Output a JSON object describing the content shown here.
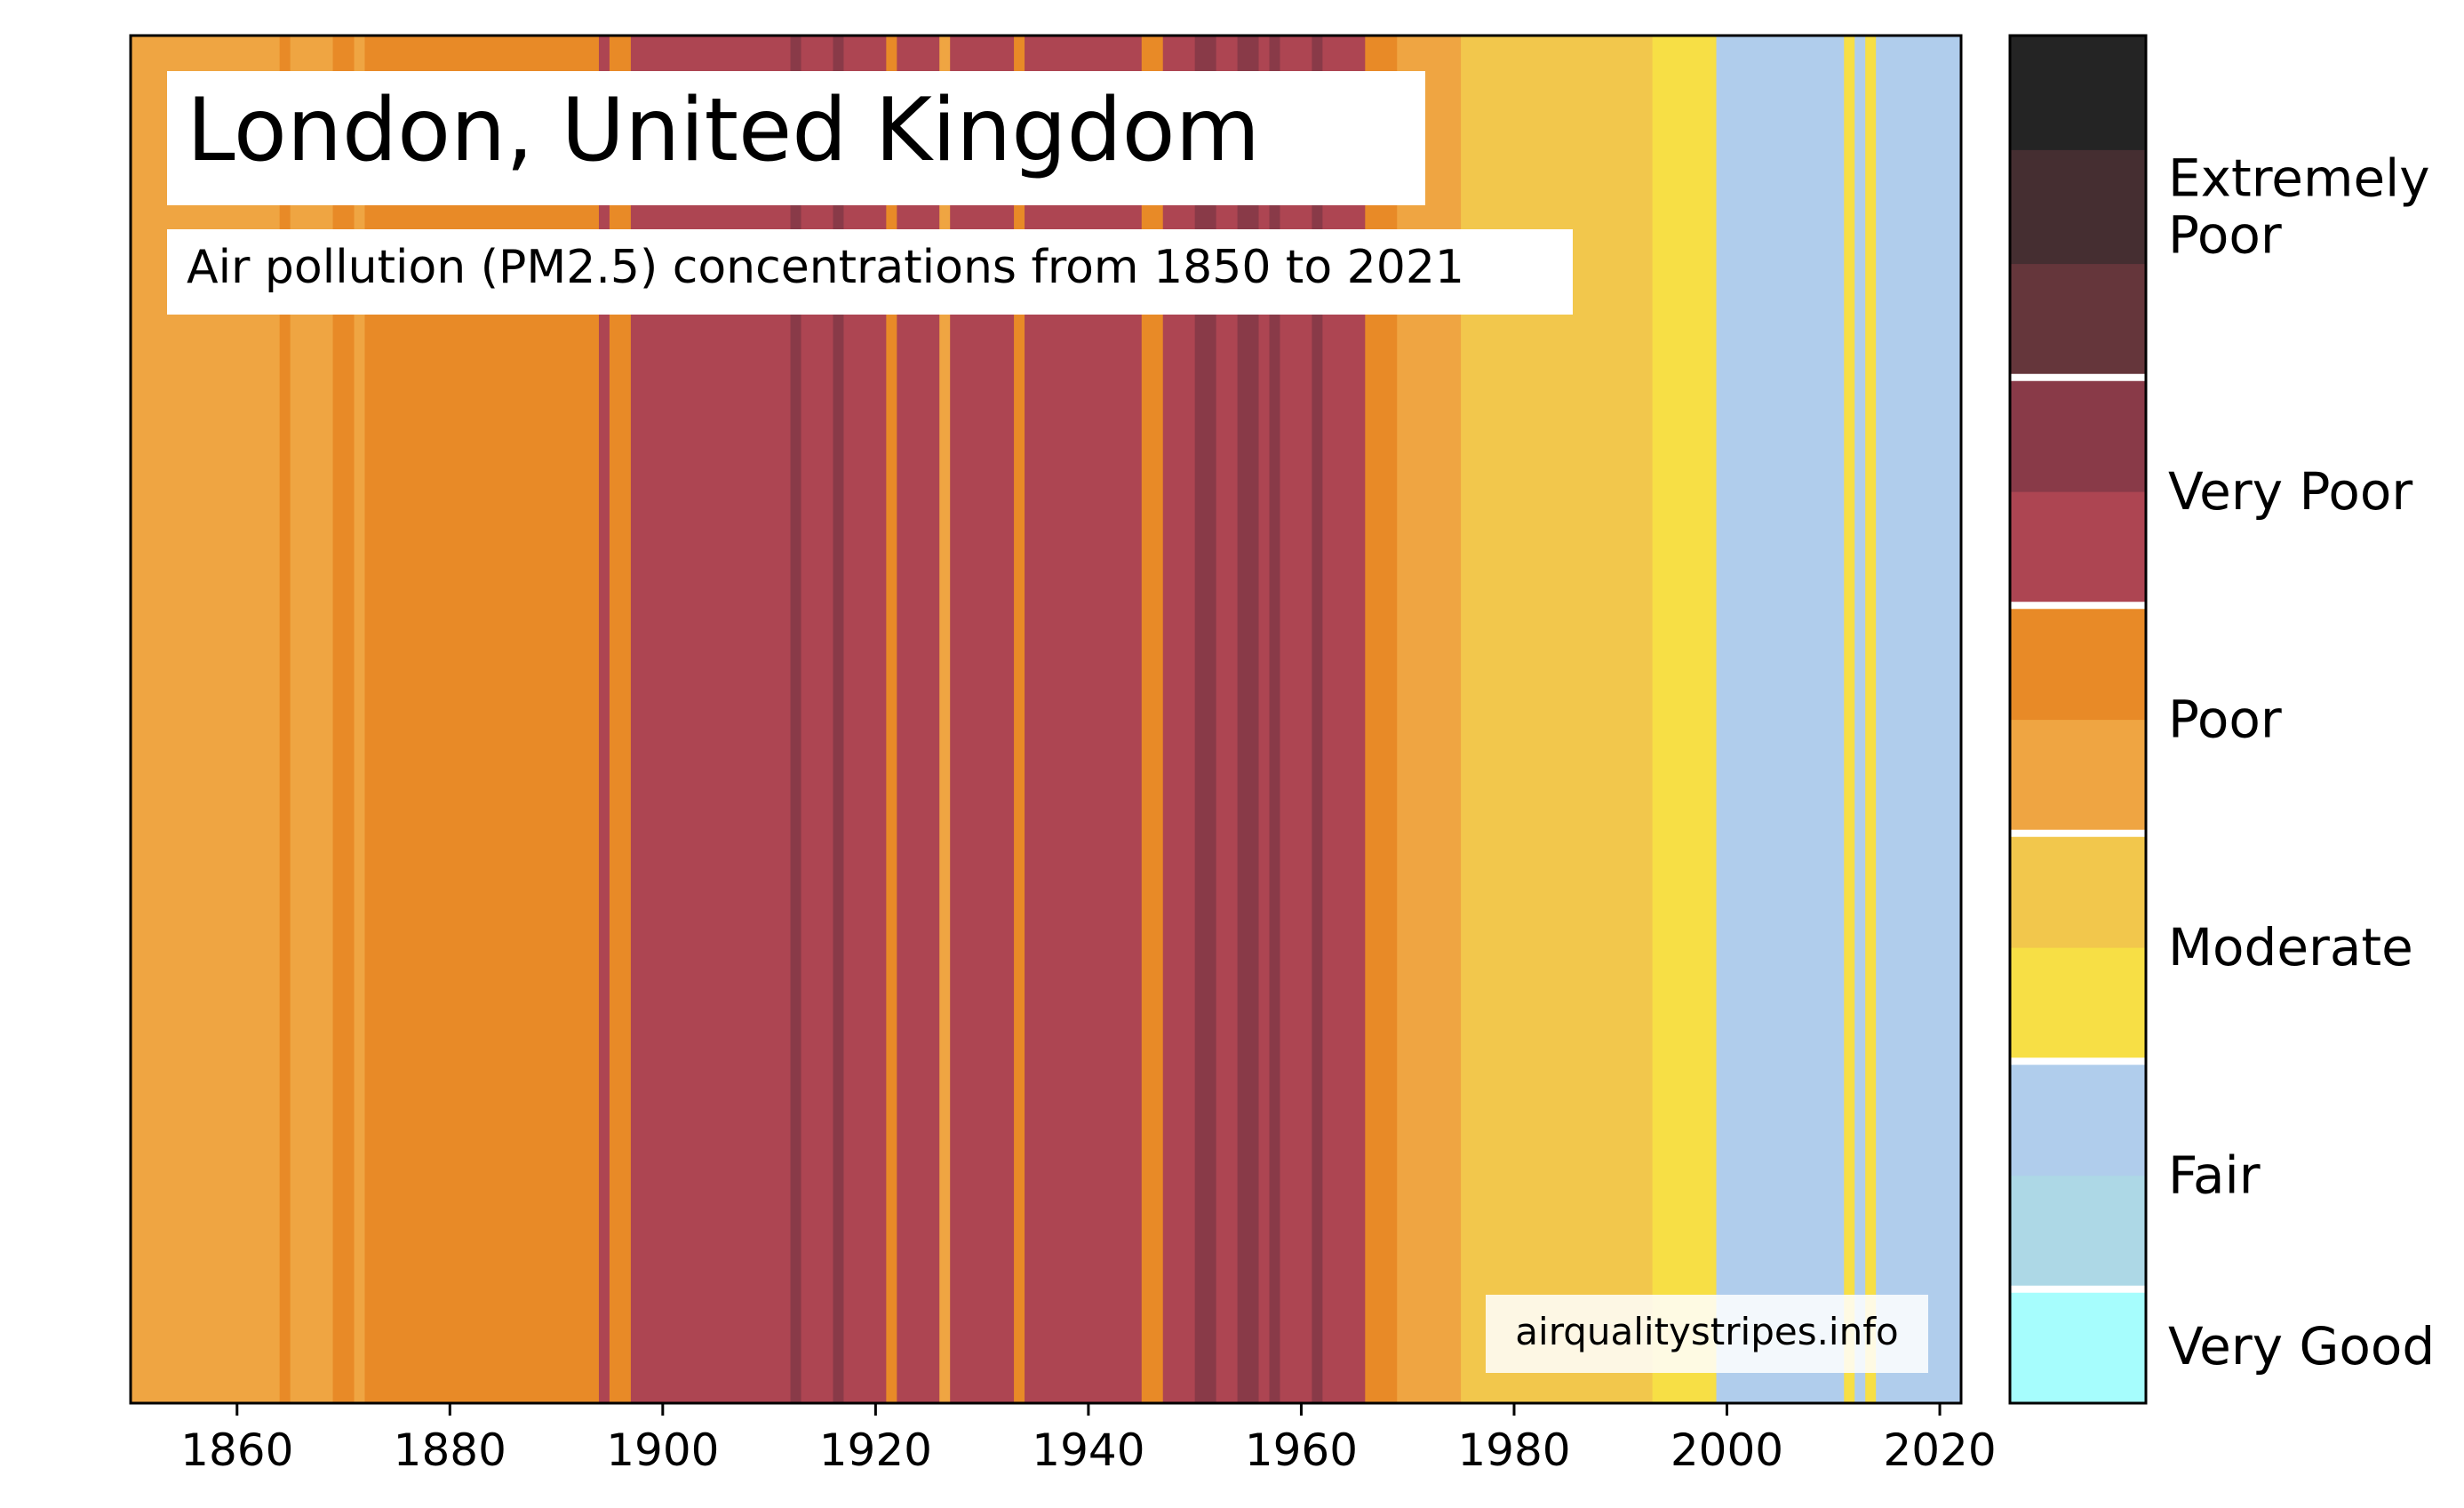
{
  "chart_data": {
    "type": "heatmap",
    "title": "London, United Kingdom",
    "subtitle": "Air pollution (PM2.5) concentrations from 1850 to 2021",
    "watermark": "airqualitystripes.info",
    "x_range": [
      1850,
      2022
    ],
    "x_ticks": [
      1860,
      1880,
      1900,
      1920,
      1940,
      1960,
      1980,
      2000,
      2020
    ],
    "y_axis": "none",
    "grid": false,
    "color_levels": [
      {
        "id": "L0",
        "color": "#a6fdfd",
        "category": "Very Good"
      },
      {
        "id": "L1",
        "color": "#add8e6",
        "category": "Fair"
      },
      {
        "id": "L2",
        "color": "#b0cdec",
        "category": "Fair"
      },
      {
        "id": "L3",
        "color": "#f7df45",
        "category": "Moderate"
      },
      {
        "id": "L4",
        "color": "#f2c74c",
        "category": "Moderate"
      },
      {
        "id": "L5",
        "color": "#efa542",
        "category": "Poor"
      },
      {
        "id": "L6",
        "color": "#e88a27",
        "category": "Poor"
      },
      {
        "id": "L7",
        "color": "#ad4552",
        "category": "Very Poor"
      },
      {
        "id": "L8",
        "color": "#893a48",
        "category": "Very Poor"
      },
      {
        "id": "L9",
        "color": "#65363b",
        "category": "Extremely Poor"
      },
      {
        "id": "L10",
        "color": "#452e31",
        "category": "Extremely Poor"
      },
      {
        "id": "L11",
        "color": "#242424",
        "category": "Extremely Poor"
      }
    ],
    "legend": {
      "placement": "right",
      "categories": [
        {
          "label": "Very Good",
          "levels": [
            "L0"
          ]
        },
        {
          "label": "Fair",
          "levels": [
            "L1",
            "L2"
          ]
        },
        {
          "label": "Moderate",
          "levels": [
            "L3",
            "L4"
          ]
        },
        {
          "label": "Poor",
          "levels": [
            "L5",
            "L6"
          ]
        },
        {
          "label": "Very Poor",
          "levels": [
            "L7",
            "L8"
          ]
        },
        {
          "label": "Extremely Poor",
          "levels": [
            "L9",
            "L10",
            "L11"
          ]
        }
      ]
    },
    "stripes": [
      {
        "start": 1850,
        "end": 1863,
        "level": "L5"
      },
      {
        "start": 1864,
        "end": 1864,
        "level": "L6"
      },
      {
        "start": 1865,
        "end": 1868,
        "level": "L5"
      },
      {
        "start": 1869,
        "end": 1870,
        "level": "L6"
      },
      {
        "start": 1871,
        "end": 1871,
        "level": "L5"
      },
      {
        "start": 1872,
        "end": 1893,
        "level": "L6"
      },
      {
        "start": 1894,
        "end": 1894,
        "level": "L7"
      },
      {
        "start": 1895,
        "end": 1896,
        "level": "L6"
      },
      {
        "start": 1897,
        "end": 1911,
        "level": "L7"
      },
      {
        "start": 1912,
        "end": 1912,
        "level": "L8"
      },
      {
        "start": 1913,
        "end": 1915,
        "level": "L7"
      },
      {
        "start": 1916,
        "end": 1916,
        "level": "L8"
      },
      {
        "start": 1917,
        "end": 1920,
        "level": "L7"
      },
      {
        "start": 1921,
        "end": 1921,
        "level": "L6"
      },
      {
        "start": 1922,
        "end": 1925,
        "level": "L7"
      },
      {
        "start": 1926,
        "end": 1926,
        "level": "L5"
      },
      {
        "start": 1927,
        "end": 1932,
        "level": "L7"
      },
      {
        "start": 1933,
        "end": 1933,
        "level": "L6"
      },
      {
        "start": 1934,
        "end": 1944,
        "level": "L7"
      },
      {
        "start": 1945,
        "end": 1946,
        "level": "L6"
      },
      {
        "start": 1947,
        "end": 1949,
        "level": "L7"
      },
      {
        "start": 1950,
        "end": 1951,
        "level": "L8"
      },
      {
        "start": 1952,
        "end": 1953,
        "level": "L7"
      },
      {
        "start": 1954,
        "end": 1955,
        "level": "L8"
      },
      {
        "start": 1956,
        "end": 1956,
        "level": "L7"
      },
      {
        "start": 1957,
        "end": 1957,
        "level": "L8"
      },
      {
        "start": 1958,
        "end": 1960,
        "level": "L7"
      },
      {
        "start": 1961,
        "end": 1961,
        "level": "L8"
      },
      {
        "start": 1962,
        "end": 1965,
        "level": "L7"
      },
      {
        "start": 1966,
        "end": 1968,
        "level": "L6"
      },
      {
        "start": 1969,
        "end": 1974,
        "level": "L5"
      },
      {
        "start": 1975,
        "end": 1992,
        "level": "L4"
      },
      {
        "start": 1993,
        "end": 1998,
        "level": "L3"
      },
      {
        "start": 1999,
        "end": 2010,
        "level": "L2"
      },
      {
        "start": 2011,
        "end": 2011,
        "level": "L3"
      },
      {
        "start": 2012,
        "end": 2012,
        "level": "L2"
      },
      {
        "start": 2013,
        "end": 2013,
        "level": "L3"
      },
      {
        "start": 2014,
        "end": 2021,
        "level": "L2"
      }
    ]
  }
}
